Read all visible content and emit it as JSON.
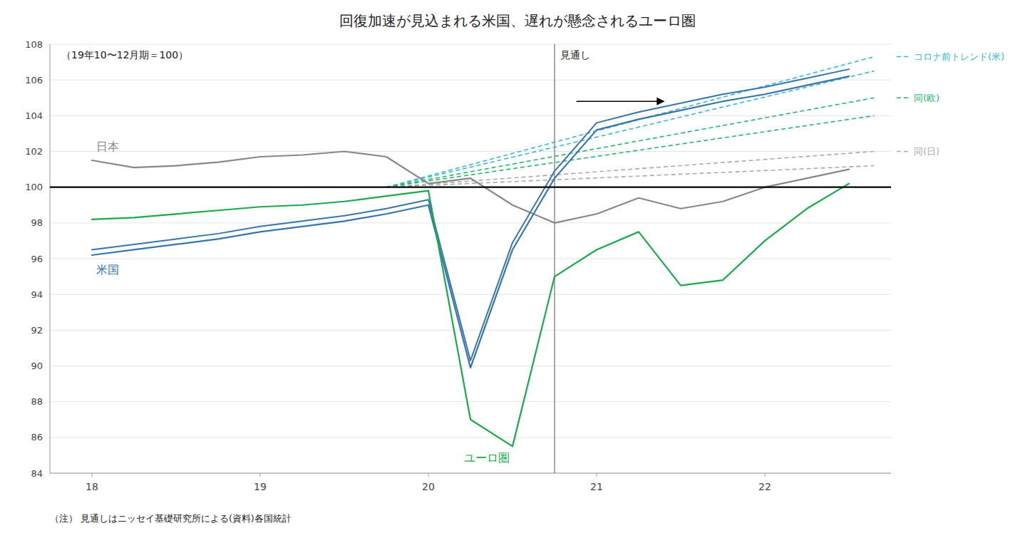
{
  "chart_data": {
    "type": "line",
    "title": "回復加速が見込まれる米国、遅れが懸念されるユーロ圏",
    "subtitle": "（19年10〜12月期＝100）",
    "note": "（注）  見通しはニッセイ基礎研究所による(資料)各国統計",
    "xlim": [
      17.75,
      22.75
    ],
    "xticks": [
      18,
      19,
      20,
      21,
      22
    ],
    "ylim": [
      84,
      108
    ],
    "yticks": [
      84,
      86,
      88,
      90,
      92,
      94,
      96,
      98,
      100,
      102,
      104,
      106,
      108
    ],
    "grid": true,
    "series": [
      {
        "name": "日本",
        "color": "#888888",
        "line_style": "solid",
        "x": [
          18.0,
          18.25,
          18.5,
          18.75,
          19.0,
          19.25,
          19.5,
          19.75,
          20.0,
          20.25,
          20.5,
          20.75,
          21.0,
          21.25,
          21.5,
          21.75,
          22.0,
          22.25,
          22.5
        ],
        "values": [
          101.5,
          101.1,
          101.2,
          101.4,
          101.7,
          101.8,
          102.0,
          101.7,
          100.2,
          100.5,
          99.0,
          98.0,
          98.5,
          99.4,
          98.8,
          99.2,
          100.0,
          100.5,
          101.0
        ]
      },
      {
        "name": "米国",
        "color": "#3575b0",
        "line_style": "solid",
        "x": [
          18.0,
          18.25,
          18.5,
          18.75,
          19.0,
          19.25,
          19.5,
          19.75,
          20.0,
          20.25,
          20.5,
          20.75,
          21.0,
          21.25,
          21.5,
          21.75,
          22.0,
          22.25,
          22.5
        ],
        "values": [
          96.2,
          96.5,
          96.8,
          97.1,
          97.5,
          97.8,
          98.1,
          98.5,
          99.0,
          89.9,
          96.5,
          100.5,
          103.2,
          103.8,
          104.3,
          104.8,
          105.2,
          105.7,
          106.2
        ]
      },
      {
        "color": "#3575b0",
        "line_style": "solid",
        "x": [
          18.0,
          18.25,
          18.5,
          18.75,
          19.0,
          19.25,
          19.5,
          19.75,
          20.0,
          20.25,
          20.5,
          20.75,
          21.0,
          21.25,
          21.5,
          21.75,
          22.0,
          22.25,
          22.5
        ],
        "values": [
          96.5,
          96.8,
          97.1,
          97.4,
          97.8,
          98.1,
          98.4,
          98.8,
          99.3,
          90.3,
          96.9,
          100.9,
          103.6,
          104.2,
          104.7,
          105.2,
          105.6,
          106.1,
          106.6
        ]
      },
      {
        "name": "ユーロ圏",
        "color": "#1aaa4a",
        "line_style": "solid",
        "x": [
          18.0,
          18.25,
          18.5,
          18.75,
          19.0,
          19.25,
          19.5,
          19.75,
          20.0,
          20.25,
          20.5,
          20.75,
          21.0,
          21.25,
          21.5,
          21.75,
          22.0,
          22.25,
          22.5
        ],
        "values": [
          98.2,
          98.3,
          98.5,
          98.7,
          98.9,
          99.0,
          99.2,
          99.5,
          99.8,
          87.0,
          85.5,
          95.0,
          96.5,
          97.5,
          94.5,
          94.8,
          97.0,
          98.8,
          100.2
        ]
      },
      {
        "name": "コロナ前トレンド(米)",
        "color": "#38b8d8",
        "line_style": "dashed",
        "x": [
          19.75,
          22.65
        ],
        "values": [
          100.0,
          107.3
        ]
      },
      {
        "color": "#38b8d8",
        "line_style": "dashed",
        "x": [
          19.75,
          22.65
        ],
        "values": [
          100.0,
          106.5
        ]
      },
      {
        "name": "同(欧)",
        "color": "#22bb66",
        "line_style": "dashed",
        "x": [
          19.75,
          22.65
        ],
        "values": [
          100.0,
          105.0
        ]
      },
      {
        "color": "#22bb66",
        "line_style": "dashed",
        "x": [
          19.75,
          22.65
        ],
        "values": [
          100.0,
          104.0
        ]
      },
      {
        "name": "同(日)",
        "color": "#aaaaaa",
        "line_style": "dashed",
        "x": [
          19.75,
          22.65
        ],
        "values": [
          100.0,
          102.0
        ]
      },
      {
        "color": "#aaaaaa",
        "line_style": "dashed",
        "x": [
          19.75,
          22.65
        ],
        "values": [
          100.0,
          101.2
        ]
      }
    ],
    "hline": {
      "y": 100,
      "color": "#000000"
    },
    "vline": {
      "x": 20.75,
      "label": "見通し",
      "color": "#555555"
    },
    "arrow": {
      "x_start": 20.88,
      "x_end": 21.4,
      "y": 104.8,
      "color": "#000000"
    }
  }
}
